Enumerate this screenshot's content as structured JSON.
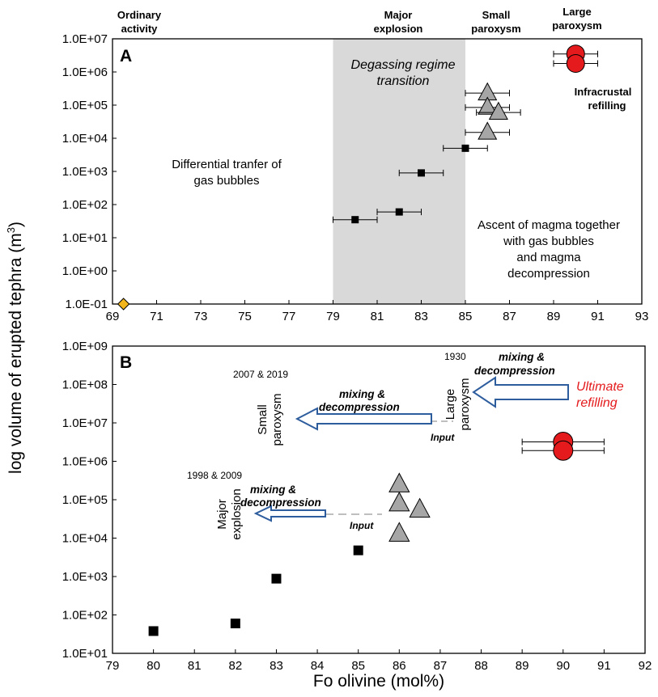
{
  "colors": {
    "square": "#000000",
    "triangle": "#a6a6a6",
    "circle": "#e41a1c",
    "diamond": "#f2b51b",
    "shade": "#d9d9d9",
    "arrow": "#2e5d9e",
    "dash": "#bfbfbf",
    "ultimate": "#e41a1c"
  },
  "labels": {
    "y_axis_title": "log volume of erupted tephra (m",
    "y_axis_sup": "3",
    "y_axis_close": ")",
    "x_axis_title": "Fo olivine (mol%)"
  },
  "chart_data": [
    {
      "panel": "A",
      "type": "scatter",
      "xlim": [
        69,
        93
      ],
      "x_ticks": [
        "69",
        "71",
        "73",
        "75",
        "77",
        "79",
        "81",
        "83",
        "85",
        "87",
        "89",
        "91",
        "93"
      ],
      "y_scale": "log",
      "ylim": [
        0.1,
        10000000
      ],
      "y_ticks": [
        "1.0E-01",
        "1.0E+00",
        "1.0E+01",
        "1.0E+02",
        "1.0E+03",
        "1.0E+04",
        "1.0E+05",
        "1.0E+06",
        "1.0E+07"
      ],
      "shaded_region": {
        "x": [
          79,
          85
        ],
        "label_line1": "Degassing regime",
        "label_line2": "transition"
      },
      "categories_top": [
        {
          "line1": "Ordinary",
          "line2": "activity",
          "x": 70.8
        },
        {
          "line1": "Major",
          "line2": "explosion",
          "x": 82
        },
        {
          "line1": "Small",
          "line2": "paroxysm",
          "x": 86.2
        },
        {
          "line1": "Large",
          "line2": "paroxysm",
          "x": 90
        }
      ],
      "annotations": {
        "differential_1": "Differential tranfer of",
        "differential_2": "gas bubbles",
        "ascent_1": "Ascent of magma together",
        "ascent_2": "with gas bubbles",
        "ascent_3": "and magma",
        "ascent_4": "decompression",
        "infracrustal_1": "Infracrustal",
        "infracrustal_2": "refilling"
      },
      "series": [
        {
          "marker": "diamond",
          "points": [
            {
              "x": 69.5,
              "y": 0.1
            }
          ]
        },
        {
          "marker": "square",
          "points": [
            {
              "x": 80,
              "y": 35,
              "xerr": 1
            },
            {
              "x": 82,
              "y": 60,
              "xerr": 1
            },
            {
              "x": 83,
              "y": 900,
              "xerr": 1
            },
            {
              "x": 85,
              "y": 5000,
              "xerr": 1
            }
          ]
        },
        {
          "marker": "triangle",
          "points": [
            {
              "x": 86,
              "y": 230000,
              "xerr": 1
            },
            {
              "x": 86,
              "y": 85000,
              "xerr": 1
            },
            {
              "x": 86.5,
              "y": 60000,
              "xerr": 1
            },
            {
              "x": 86,
              "y": 15000,
              "xerr": 1
            }
          ]
        },
        {
          "marker": "circle",
          "points": [
            {
              "x": 90,
              "y": 3500000,
              "xerr": 1
            },
            {
              "x": 90,
              "y": 1800000,
              "xerr": 1
            }
          ]
        }
      ]
    },
    {
      "panel": "B",
      "type": "scatter",
      "xlim": [
        79,
        92
      ],
      "x_ticks": [
        "79",
        "80",
        "81",
        "82",
        "83",
        "84",
        "85",
        "86",
        "87",
        "88",
        "89",
        "90",
        "91",
        "92"
      ],
      "y_scale": "log",
      "ylim": [
        10,
        1000000000
      ],
      "y_ticks": [
        "1.0E+01",
        "1.0E+02",
        "1.0E+03",
        "1.0E+04",
        "1.0E+05",
        "1.0E+06",
        "1.0E+07",
        "1.0E+08",
        "1.0E+09"
      ],
      "annotations": {
        "small_paroxysm_1": "Small",
        "small_paroxysm_2": "paroxysm",
        "large_paroxysm_1": "Large",
        "large_paroxysm_2": "paroxysm",
        "major_explosion_1": "Major",
        "major_explosion_2": "explosion",
        "year_small": "2007 & 2019",
        "year_large": "1930",
        "year_major": "1998 & 2009",
        "mixing_1": "mixing &",
        "mixing_2": "decompression",
        "input": "Input",
        "ultimate_1": "Ultimate",
        "ultimate_2": "refilling"
      },
      "series": [
        {
          "marker": "square",
          "points": [
            {
              "x": 80,
              "y": 38
            },
            {
              "x": 82,
              "y": 60
            },
            {
              "x": 83,
              "y": 880
            },
            {
              "x": 85,
              "y": 4800
            }
          ]
        },
        {
          "marker": "triangle",
          "points": [
            {
              "x": 86,
              "y": 250000
            },
            {
              "x": 86,
              "y": 80000
            },
            {
              "x": 86.5,
              "y": 55000
            },
            {
              "x": 86,
              "y": 13000
            }
          ]
        },
        {
          "marker": "circle",
          "points": [
            {
              "x": 90,
              "y": 3200000,
              "xerr": 1
            },
            {
              "x": 90,
              "y": 1900000,
              "xerr": 1
            }
          ]
        }
      ]
    }
  ]
}
